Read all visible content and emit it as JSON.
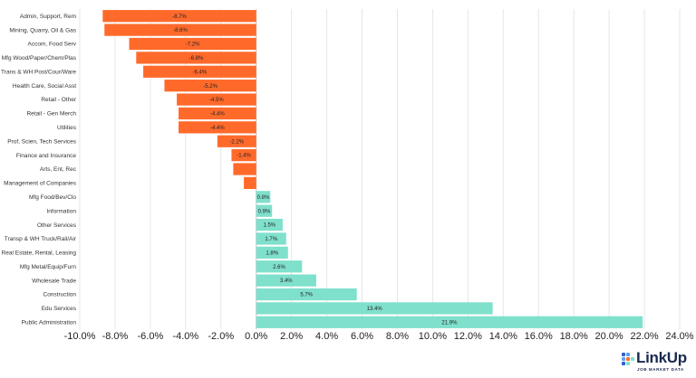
{
  "chart_data": {
    "type": "bar",
    "orientation": "horizontal",
    "categories": [
      "Admin, Support, Rem",
      "Mining, Quarry, Oil & Gas",
      "Accom, Food Serv",
      "Mfg Wood/Paper/Chem/Plas",
      "Trans & WH Post/Cour/Ware",
      "Health Care, Social Asst",
      "Retail - Other",
      "Retail - Gen Merch",
      "Utilities",
      "Prof, Scien, Tech Services",
      "Finance and Insurance",
      "Arts, Ent, Rec",
      "Management of Companies",
      "Mfg Food/Bev/Clo",
      "Information",
      "Other Services",
      "Transp & WH Truck/Rail/Air",
      "Real Estate, Rental, Leasing",
      "Mfg Metal/Equip/Furn",
      "Wholesale Trade",
      "Construction",
      "Edu Services",
      "Public Administration"
    ],
    "values": [
      -8.7,
      -8.6,
      -7.2,
      -6.8,
      -6.4,
      -5.2,
      -4.5,
      -4.4,
      -4.4,
      -2.2,
      -1.4,
      -1.3,
      -0.7,
      0.8,
      0.9,
      1.5,
      1.7,
      1.8,
      2.6,
      3.4,
      5.7,
      13.4,
      21.9
    ],
    "data_labels": [
      "-8.7%",
      "-8.6%",
      "-7.2%",
      "-6.8%",
      "-6.4%",
      "-5.2%",
      "-4.5%",
      "-4.4%",
      "-4.4%",
      "-2.2%",
      "-1.4%",
      "",
      "",
      "0.8%",
      "0.9%",
      "1.5%",
      "1.7%",
      "1.8%",
      "2.6%",
      "3.4%",
      "5.7%",
      "13.4%",
      "21.9%"
    ],
    "xlim": [
      -10,
      24
    ],
    "x_ticks": [
      -10,
      -8,
      -6,
      -4,
      -2,
      0,
      2,
      4,
      6,
      8,
      10,
      12,
      14,
      16,
      18,
      20,
      22,
      24
    ],
    "x_tick_labels": [
      "-10.0%",
      "-8.0%",
      "-6.0%",
      "-4.0%",
      "-2.0%",
      "0.0%",
      "2.0%",
      "4.0%",
      "6.0%",
      "8.0%",
      "10.0%",
      "12.0%",
      "14.0%",
      "16.0%",
      "18.0%",
      "20.0%",
      "22.0%",
      "24.0%"
    ],
    "grid": true,
    "title": "",
    "xlabel": "",
    "ylabel": ""
  },
  "colors": {
    "negative": "#ff6a2b",
    "positive": "#7fe0cc",
    "grid": "#e6e6e6"
  },
  "logo": {
    "name": "LinkUp",
    "tagline": "JOB MARKET DATA"
  }
}
